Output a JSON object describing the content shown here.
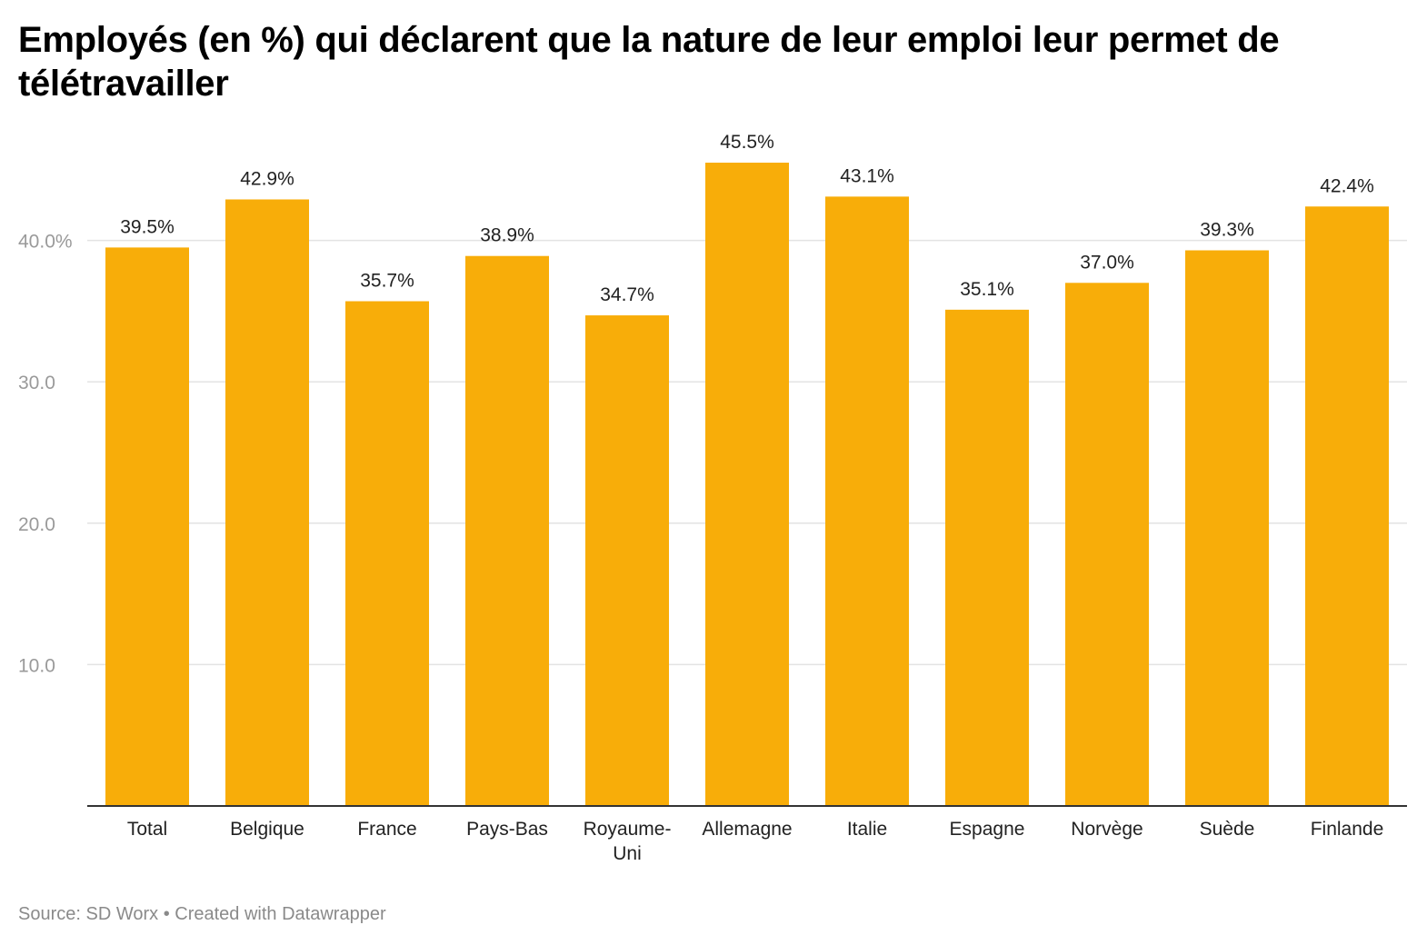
{
  "title": "Employés (en %) qui déclarent que la nature de leur emploi leur permet de télétravailler",
  "footer": {
    "source": "Source: SD Worx",
    "separator": "•",
    "credit": "Created with Datawrapper"
  },
  "colors": {
    "bar": "#f8ad09",
    "gridline": "#e3e3e3",
    "baseline": "#333333",
    "tick_label": "#9a9a9a",
    "text": "#222222"
  },
  "chart_data": {
    "type": "bar",
    "title": "Employés (en %) qui déclarent que la nature de leur emploi leur permet de télétravailler",
    "xlabel": "",
    "ylabel": "",
    "categories": [
      [
        "Total"
      ],
      [
        "Belgique"
      ],
      [
        "France"
      ],
      [
        "Pays-Bas"
      ],
      [
        "Royaume-",
        "Uni"
      ],
      [
        "Allemagne"
      ],
      [
        "Italie"
      ],
      [
        "Espagne"
      ],
      [
        "Norvège"
      ],
      [
        "Suède"
      ],
      [
        "Finlande"
      ]
    ],
    "values": [
      39.5,
      42.9,
      35.7,
      38.9,
      34.7,
      45.5,
      43.1,
      35.1,
      37.0,
      39.3,
      42.4
    ],
    "value_labels": [
      "39.5%",
      "42.9%",
      "35.7%",
      "38.9%",
      "34.7%",
      "45.5%",
      "43.1%",
      "35.1%",
      "37.0%",
      "39.3%",
      "42.4%"
    ],
    "ylim": [
      0,
      40
    ],
    "yticks": [
      10,
      20,
      30,
      40
    ],
    "ytick_labels": [
      "10.0",
      "20.0",
      "30.0",
      "40.0%"
    ],
    "grid": true,
    "legend": "none"
  }
}
